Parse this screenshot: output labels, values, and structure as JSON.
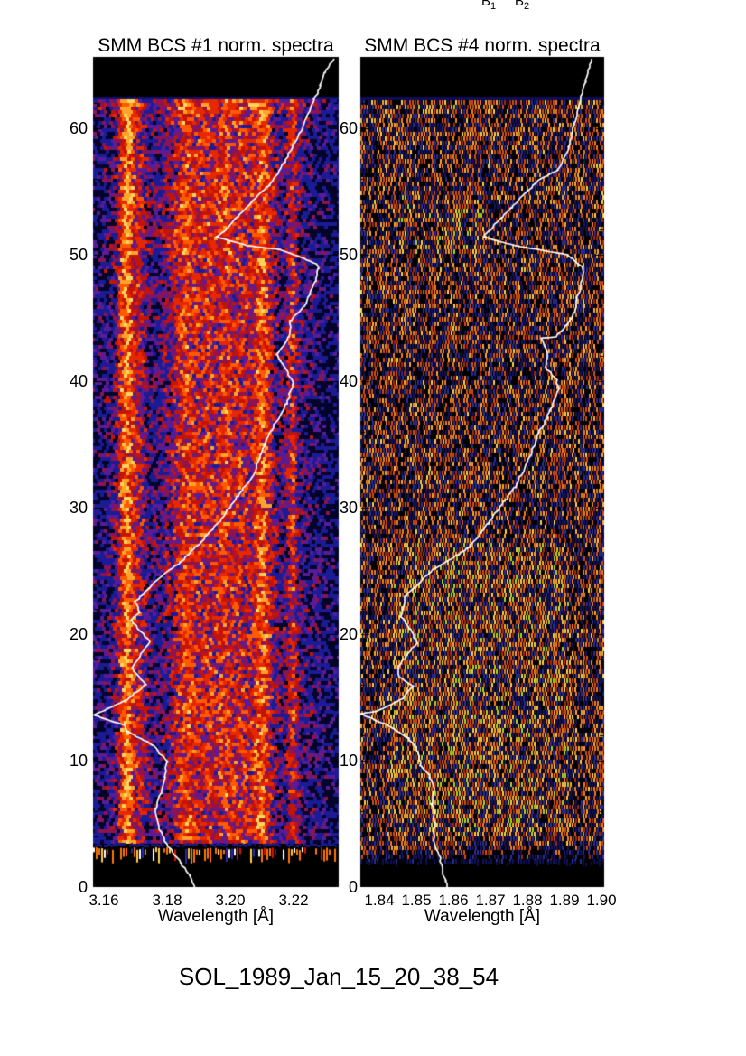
{
  "annotations": {
    "b1_base": "B",
    "b1_sub": "1",
    "b2_base": "B",
    "b2_sub": "2"
  },
  "footer": {
    "label": "SOL_1989_Jan_15_20_38_54"
  },
  "chart_data": [
    {
      "type": "heatmap",
      "title": "SMM BCS #1 norm. spectra",
      "xlabel": "Wavelength [Å]",
      "ylabel": "",
      "xlim": [
        3.156,
        3.234
      ],
      "ylim": [
        0,
        65.6
      ],
      "x_tick_values": [
        3.16,
        3.18,
        3.2,
        3.22
      ],
      "x_tick_labels": [
        "3.16",
        "3.18",
        "3.20",
        "3.22"
      ],
      "y_tick_values": [
        0,
        10,
        20,
        30,
        40,
        50,
        60
      ],
      "y_tick_labels": [
        "0",
        "10",
        "20",
        "30",
        "40",
        "50",
        "60"
      ],
      "grid": false,
      "colormap": "blue-red-yellow",
      "palette": {
        "darkest": "#04042a",
        "blue": "#1b1b96",
        "purple": "#5a1c96",
        "magenta": "#8c1450",
        "red": "#c41408",
        "bright_red": "#e62800",
        "orange_red": "#ff5a00",
        "orange": "#ffa428",
        "yellow": "#ffd45e"
      },
      "blank_bands": {
        "top_y": [
          62.4,
          65.6
        ],
        "dash_band_y": [
          1.85,
          3.2
        ],
        "bottom_y": [
          0,
          1.85
        ]
      },
      "emission_bands": [
        {
          "wavelength": 3.1672,
          "width": 0.0017,
          "intensity": 0.62
        },
        {
          "wavelength": 3.1715,
          "width": 0.0014,
          "intensity": 0.22
        },
        {
          "wavelength": 3.1863,
          "width": 0.0034,
          "intensity": 0.4
        },
        {
          "wavelength": 3.1932,
          "width": 0.002,
          "intensity": 0.26
        },
        {
          "wavelength": 3.1983,
          "width": 0.002,
          "intensity": 0.36
        },
        {
          "wavelength": 3.2035,
          "width": 0.002,
          "intensity": 0.3
        },
        {
          "wavelength": 3.21,
          "width": 0.0023,
          "intensity": 0.52
        },
        {
          "wavelength": 3.2197,
          "width": 0.0011,
          "intensity": 0.34
        }
      ],
      "bright_regions": [
        {
          "y": [
            49.8,
            55.6
          ],
          "wl": [
            3.166,
            3.2
          ],
          "boost": 0.07
        }
      ],
      "overlay_curve": {
        "name": "integrated-flux-light-curve",
        "color": "#ffffff",
        "x_units": "normalized intensity (fraction of panel width)",
        "y_units": "spectrum number",
        "points": [
          [
            0.982,
            65.5
          ],
          [
            0.945,
            64.4
          ],
          [
            0.926,
            63.4
          ],
          [
            0.901,
            62.3
          ],
          [
            0.871,
            60.9
          ],
          [
            0.846,
            59.8
          ],
          [
            0.816,
            58.7
          ],
          [
            0.779,
            57.3
          ],
          [
            0.743,
            56.2
          ],
          [
            0.717,
            55.5
          ],
          [
            0.651,
            54.3
          ],
          [
            0.588,
            53.0
          ],
          [
            0.548,
            52.1
          ],
          [
            0.504,
            51.4
          ],
          [
            0.636,
            50.7
          ],
          [
            0.765,
            50.4
          ],
          [
            0.908,
            49.3
          ],
          [
            0.919,
            48.9
          ],
          [
            0.904,
            47.9
          ],
          [
            0.882,
            46.9
          ],
          [
            0.857,
            45.9
          ],
          [
            0.805,
            44.8
          ],
          [
            0.798,
            43.5
          ],
          [
            0.75,
            42.1
          ],
          [
            0.765,
            41.6
          ],
          [
            0.816,
            39.8
          ],
          [
            0.787,
            38.2
          ],
          [
            0.724,
            36.1
          ],
          [
            0.68,
            34.2
          ],
          [
            0.658,
            32.6
          ],
          [
            0.588,
            30.9
          ],
          [
            0.515,
            28.9
          ],
          [
            0.441,
            27.3
          ],
          [
            0.357,
            25.7
          ],
          [
            0.268,
            24.4
          ],
          [
            0.173,
            22.6
          ],
          [
            0.191,
            21.7
          ],
          [
            0.154,
            21.1
          ],
          [
            0.232,
            19.4
          ],
          [
            0.158,
            17.3
          ],
          [
            0.213,
            16.0
          ],
          [
            0.136,
            14.8
          ],
          [
            0.004,
            13.6
          ],
          [
            0.129,
            12.8
          ],
          [
            0.143,
            12.3
          ],
          [
            0.246,
            11.2
          ],
          [
            0.301,
            9.9
          ],
          [
            0.294,
            8.7
          ],
          [
            0.276,
            7.4
          ],
          [
            0.254,
            6.2
          ],
          [
            0.265,
            4.8
          ],
          [
            0.301,
            3.4
          ],
          [
            0.357,
            1.9
          ],
          [
            0.393,
            0.9
          ],
          [
            0.423,
            -0.4
          ]
        ]
      }
    },
    {
      "type": "heatmap",
      "title": "SMM BCS #4 norm. spectra",
      "xlabel": "Wavelength [Å]",
      "ylabel": "",
      "xlim": [
        1.835,
        1.901
      ],
      "ylim": [
        0,
        65.6
      ],
      "x_tick_values": [
        1.84,
        1.85,
        1.86,
        1.87,
        1.88,
        1.89,
        1.9
      ],
      "x_tick_labels": [
        "1.84",
        "1.85",
        "1.86",
        "1.87",
        "1.88",
        "1.89",
        "1.90"
      ],
      "y_tick_values": [
        0,
        10,
        20,
        30,
        40,
        50,
        60
      ],
      "y_tick_labels": [
        "0",
        "10",
        "20",
        "30",
        "40",
        "50",
        "60"
      ],
      "grid": false,
      "colormap": "black-blue-orange",
      "palette": {
        "black": "#000008",
        "dark_blue": "#12125e",
        "blue": "#2c2c96",
        "dark_red": "#a02c10",
        "red_orange": "#d05018",
        "orange": "#f08020",
        "bright_orange": "#ffaa33",
        "yellow": "#ffd048",
        "green": "#b4d428"
      },
      "blank_bands": {
        "top_y": [
          62.3,
          65.6
        ],
        "dash_band_y": [
          1.4,
          3.6
        ],
        "bottom_y": [
          0,
          1.4
        ]
      },
      "emission_bands": [],
      "bright_regions": [
        {
          "y": [
            50.3,
            55.6
          ],
          "wl": [
            1.845,
            1.869
          ],
          "boost": 0.12
        },
        {
          "y": [
            4.1,
            27.3
          ],
          "wl": [
            1.842,
            1.891
          ],
          "boost": 0.17
        },
        {
          "y": [
            40.5,
            41.4
          ],
          "wl": [
            1.835,
            1.901
          ],
          "boost": -0.3
        }
      ],
      "overlay_curve": {
        "name": "integrated-flux-light-curve",
        "color": "#ffffff",
        "x_units": "normalized intensity (fraction of panel width)",
        "y_units": "spectrum number",
        "points": [
          [
            0.948,
            65.5
          ],
          [
            0.937,
            64.6
          ],
          [
            0.922,
            63.7
          ],
          [
            0.904,
            62.3
          ],
          [
            0.878,
            60.5
          ],
          [
            0.856,
            58.5
          ],
          [
            0.811,
            56.7
          ],
          [
            0.73,
            55.9
          ],
          [
            0.619,
            53.7
          ],
          [
            0.581,
            53.0
          ],
          [
            0.504,
            51.4
          ],
          [
            0.641,
            50.7
          ],
          [
            0.852,
            50.0
          ],
          [
            0.915,
            48.9
          ],
          [
            0.907,
            47.8
          ],
          [
            0.889,
            46.6
          ],
          [
            0.878,
            45.4
          ],
          [
            0.841,
            44.4
          ],
          [
            0.804,
            43.5
          ],
          [
            0.741,
            43.4
          ],
          [
            0.767,
            42.3
          ],
          [
            0.759,
            41.1
          ],
          [
            0.804,
            40.1
          ],
          [
            0.815,
            39.4
          ],
          [
            0.789,
            38.2
          ],
          [
            0.767,
            37.1
          ],
          [
            0.73,
            35.9
          ],
          [
            0.704,
            34.4
          ],
          [
            0.633,
            31.6
          ],
          [
            0.522,
            28.7
          ],
          [
            0.448,
            26.9
          ],
          [
            0.37,
            25.9
          ],
          [
            0.296,
            25.1
          ],
          [
            0.185,
            23.0
          ],
          [
            0.167,
            21.4
          ],
          [
            0.204,
            20.4
          ],
          [
            0.233,
            19.3
          ],
          [
            0.196,
            18.5
          ],
          [
            0.159,
            17.5
          ],
          [
            0.159,
            16.6
          ],
          [
            0.215,
            15.9
          ],
          [
            0.174,
            14.9
          ],
          [
            0.067,
            13.9
          ],
          [
            0.0,
            13.7
          ],
          [
            0.111,
            12.8
          ],
          [
            0.196,
            11.8
          ],
          [
            0.23,
            11.1
          ],
          [
            0.248,
            9.6
          ],
          [
            0.285,
            8.7
          ],
          [
            0.304,
            8.0
          ],
          [
            0.293,
            6.6
          ],
          [
            0.307,
            5.1
          ],
          [
            0.3,
            3.7
          ],
          [
            0.326,
            2.3
          ],
          [
            0.348,
            0.5
          ],
          [
            0.363,
            -0.4
          ]
        ]
      }
    }
  ]
}
